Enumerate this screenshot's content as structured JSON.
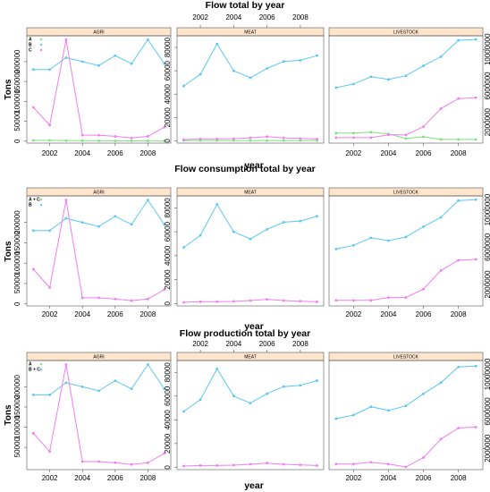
{
  "colors": {
    "A": "#7ee07e",
    "B": "#5bc8f0",
    "C": "#f07ef0",
    "strip": "#ffe5cc",
    "axis": "#555555"
  },
  "chart_data": [
    {
      "type": "line",
      "title": "Flow total by year",
      "xlabel": "year",
      "ylabel": "Tons",
      "x": [
        2001,
        2002,
        2003,
        2004,
        2005,
        2006,
        2007,
        2008,
        2009
      ],
      "xticks": [
        2002,
        2004,
        2006,
        2008
      ],
      "legend": {
        "placement": "top-left",
        "entries": [
          "A",
          "B",
          "C"
        ]
      },
      "panels": [
        {
          "name": "AGRI",
          "ylim": [
            -5000,
            265000
          ],
          "yticks": [
            0,
            50000,
            100000,
            150000,
            200000
          ],
          "ytick_labels": [
            "0",
            "50000",
            "100000",
            "150000",
            "200000"
          ],
          "series": [
            {
              "key": "A",
              "values": [
                2000,
                2000,
                1500,
                1000,
                800,
                600,
                600,
                500,
                500
              ]
            },
            {
              "key": "B",
              "values": [
                180000,
                180000,
                210000,
                200000,
                190000,
                215000,
                195000,
                255000,
                195000
              ]
            },
            {
              "key": "C",
              "values": [
                85000,
                40000,
                255000,
                15000,
                15000,
                12000,
                8000,
                12000,
                35000
              ]
            }
          ]
        },
        {
          "name": "MEAT",
          "ylim": [
            -2000,
            90000
          ],
          "yticks": [
            0,
            20000,
            40000,
            60000,
            80000
          ],
          "ytick_labels": [
            "0",
            "20000",
            "40000",
            "60000",
            "80000"
          ],
          "series": [
            {
              "key": "A",
              "values": [
                200,
                200,
                200,
                200,
                200,
                200,
                200,
                200,
                200
              ]
            },
            {
              "key": "B",
              "values": [
                47000,
                57000,
                83000,
                60000,
                54000,
                62000,
                68000,
                69000,
                73000
              ]
            },
            {
              "key": "C",
              "values": [
                1000,
                1500,
                1500,
                1800,
                2500,
                3500,
                2500,
                2000,
                1500
              ]
            }
          ]
        },
        {
          "name": "LIVESTOCK",
          "ylim": [
            -300000,
            11500000
          ],
          "yticks": [
            2000000,
            6000000,
            10000000
          ],
          "ytick_labels": [
            "2000000",
            "6000000",
            "10000000"
          ],
          "series": [
            {
              "key": "A",
              "values": [
                800000,
                800000,
                900000,
                700000,
                200000,
                400000,
                100000,
                100000,
                100000
              ]
            },
            {
              "key": "B",
              "values": [
                5800000,
                6200000,
                7000000,
                6700000,
                7100000,
                8200000,
                9200000,
                11000000,
                11100000
              ]
            },
            {
              "key": "C",
              "values": [
                300000,
                300000,
                300000,
                600000,
                600000,
                1500000,
                3500000,
                4600000,
                4700000
              ]
            }
          ]
        }
      ]
    },
    {
      "type": "line",
      "title": "Flow consumption total by year",
      "xlabel": "year",
      "ylabel": "Tons",
      "x": [
        2001,
        2002,
        2003,
        2004,
        2005,
        2006,
        2007,
        2008,
        2009
      ],
      "xticks": [
        2002,
        2004,
        2006,
        2008
      ],
      "legend": {
        "placement": "top-left",
        "entries": [
          "A + C",
          "B"
        ]
      },
      "panels": [
        {
          "name": "AGRI",
          "ylim": [
            -5000,
            265000
          ],
          "yticks": [
            0,
            50000,
            100000,
            150000,
            200000
          ],
          "ytick_labels": [
            "0",
            "50000",
            "100000",
            "150000",
            "200000"
          ],
          "series": [
            {
              "key": "B",
              "values": [
                180000,
                180000,
                210000,
                200000,
                190000,
                215000,
                195000,
                255000,
                195000
              ]
            },
            {
              "key": "C",
              "values": [
                85000,
                40000,
                255000,
                15000,
                15000,
                12000,
                8000,
                12000,
                35000
              ]
            }
          ]
        },
        {
          "name": "MEAT",
          "ylim": [
            -2000,
            90000
          ],
          "yticks": [
            0,
            20000,
            40000,
            60000,
            80000
          ],
          "ytick_labels": [
            "0",
            "20000",
            "40000",
            "60000",
            "80000"
          ],
          "series": [
            {
              "key": "B",
              "values": [
                47000,
                57000,
                83000,
                60000,
                54000,
                62000,
                68000,
                69000,
                73000
              ]
            },
            {
              "key": "C",
              "values": [
                1000,
                1500,
                1500,
                1800,
                2500,
                3500,
                2500,
                2000,
                1500
              ]
            }
          ]
        },
        {
          "name": "LIVESTOCK",
          "ylim": [
            -300000,
            11500000
          ],
          "yticks": [
            2000000,
            6000000,
            10000000
          ],
          "ytick_labels": [
            "2000000",
            "6000000",
            "10000000"
          ],
          "series": [
            {
              "key": "B",
              "values": [
                5800000,
                6200000,
                7000000,
                6700000,
                7100000,
                8200000,
                9200000,
                11000000,
                11100000
              ]
            },
            {
              "key": "C",
              "values": [
                300000,
                300000,
                300000,
                600000,
                600000,
                1500000,
                3500000,
                4600000,
                4700000
              ]
            }
          ]
        }
      ]
    },
    {
      "type": "line",
      "title": "Flow production total by year",
      "xlabel": "year",
      "ylabel": "Tons",
      "x": [
        2001,
        2002,
        2003,
        2004,
        2005,
        2006,
        2007,
        2008,
        2009
      ],
      "xticks": [
        2002,
        2004,
        2006,
        2008
      ],
      "legend": {
        "placement": "top-left",
        "entries": [
          "A",
          "B + C"
        ]
      },
      "panels": [
        {
          "name": "AGRI",
          "ylim": [
            -5000,
            265000
          ],
          "yticks": [
            50000,
            100000,
            150000,
            200000
          ],
          "ytick_labels": [
            "50000",
            "100000",
            "150000",
            "200000"
          ],
          "series": [
            {
              "key": "B",
              "values": [
                180000,
                180000,
                210000,
                200000,
                190000,
                215000,
                195000,
                255000,
                195000
              ]
            },
            {
              "key": "C",
              "values": [
                85000,
                40000,
                255000,
                15000,
                15000,
                12000,
                8000,
                12000,
                35000
              ]
            }
          ]
        },
        {
          "name": "MEAT",
          "ylim": [
            -2000,
            90000
          ],
          "yticks": [
            0,
            20000,
            40000,
            60000,
            80000
          ],
          "ytick_labels": [
            "0",
            "20000",
            "40000",
            "60000",
            "80000"
          ],
          "series": [
            {
              "key": "B",
              "values": [
                47000,
                57000,
                83000,
                60000,
                54000,
                62000,
                68000,
                69000,
                73000
              ]
            },
            {
              "key": "C",
              "values": [
                1000,
                1500,
                1500,
                1800,
                2500,
                3500,
                2500,
                2000,
                1500
              ]
            }
          ]
        },
        {
          "name": "LIVESTOCK",
          "ylim": [
            -300000,
            11500000
          ],
          "yticks": [
            2000000,
            6000000,
            10000000
          ],
          "ytick_labels": [
            "2000000",
            "6000000",
            "10000000"
          ],
          "series": [
            {
              "key": "B",
              "values": [
                5200000,
                5600000,
                6500000,
                6100000,
                6600000,
                7900000,
                9100000,
                10800000,
                10900000
              ]
            },
            {
              "key": "C",
              "values": [
                300000,
                300000,
                500000,
                300000,
                0,
                1000000,
                3000000,
                4200000,
                4300000
              ]
            }
          ]
        }
      ]
    }
  ]
}
